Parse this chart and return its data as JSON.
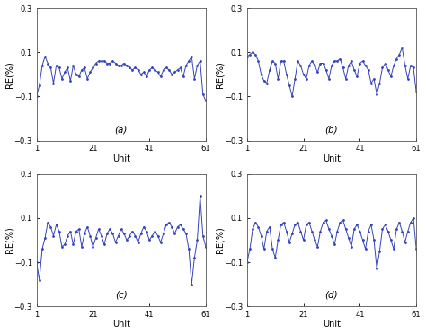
{
  "line_color": "#3344bb",
  "marker": ".",
  "marker_size": 2.0,
  "linewidth": 0.7,
  "ylim": [
    -0.3,
    0.3
  ],
  "yticks": [
    -0.3,
    -0.1,
    0.1,
    0.3
  ],
  "xticks": [
    1,
    21,
    41,
    61
  ],
  "xlabel": "Unit",
  "ylabel": "RE(%)",
  "bg_color": "#ffffff",
  "labels": [
    "(a)",
    "(b)",
    "(c)",
    "(d)"
  ],
  "figsize": [
    4.74,
    3.72
  ],
  "dpi": 100,
  "y_a": [
    -0.1,
    -0.05,
    0.04,
    0.08,
    0.05,
    0.03,
    -0.04,
    0.04,
    0.03,
    -0.02,
    0.01,
    0.03,
    -0.03,
    0.04,
    0.0,
    -0.01,
    0.02,
    0.03,
    -0.02,
    0.01,
    0.03,
    0.05,
    0.06,
    0.06,
    0.06,
    0.05,
    0.05,
    0.06,
    0.05,
    0.04,
    0.04,
    0.05,
    0.04,
    0.03,
    0.02,
    0.03,
    0.02,
    0.0,
    0.01,
    -0.01,
    0.02,
    0.03,
    0.02,
    0.01,
    -0.01,
    0.02,
    0.03,
    0.02,
    0.0,
    0.01,
    0.02,
    0.03,
    -0.01,
    0.04,
    0.06,
    0.08,
    -0.02,
    0.04,
    0.06,
    -0.09,
    -0.12
  ],
  "y_b": [
    0.08,
    0.09,
    0.1,
    0.09,
    0.06,
    0.0,
    -0.03,
    -0.04,
    0.02,
    0.06,
    0.05,
    -0.02,
    0.06,
    0.06,
    0.0,
    -0.05,
    -0.1,
    -0.02,
    0.06,
    0.04,
    0.0,
    -0.02,
    0.04,
    0.06,
    0.04,
    0.01,
    0.05,
    0.05,
    0.02,
    -0.02,
    0.04,
    0.06,
    0.06,
    0.07,
    0.03,
    -0.02,
    0.04,
    0.06,
    0.02,
    -0.01,
    0.05,
    0.06,
    0.04,
    0.02,
    -0.04,
    -0.02,
    -0.09,
    -0.04,
    0.03,
    0.05,
    0.02,
    -0.01,
    0.04,
    0.07,
    0.09,
    0.12,
    0.04,
    -0.02,
    0.04,
    0.03,
    -0.08
  ],
  "y_c": [
    -0.1,
    -0.18,
    -0.04,
    0.01,
    0.08,
    0.06,
    0.02,
    0.07,
    0.04,
    -0.03,
    -0.02,
    0.02,
    0.04,
    -0.02,
    0.04,
    0.05,
    -0.03,
    0.03,
    0.06,
    0.02,
    -0.03,
    0.01,
    0.05,
    0.02,
    -0.02,
    0.03,
    0.05,
    0.03,
    -0.01,
    0.02,
    0.05,
    0.03,
    0.0,
    0.02,
    0.04,
    0.02,
    -0.01,
    0.03,
    0.06,
    0.04,
    0.0,
    0.02,
    0.04,
    0.02,
    -0.01,
    0.03,
    0.07,
    0.08,
    0.06,
    0.03,
    0.06,
    0.07,
    0.05,
    0.03,
    -0.04,
    -0.2,
    -0.08,
    0.0,
    0.2,
    0.02,
    -0.03
  ],
  "y_d": [
    -0.1,
    -0.04,
    0.05,
    0.08,
    0.06,
    0.02,
    -0.04,
    0.04,
    0.06,
    -0.04,
    -0.08,
    0.0,
    0.07,
    0.08,
    0.04,
    -0.01,
    0.03,
    0.07,
    0.08,
    0.04,
    0.0,
    0.07,
    0.08,
    0.04,
    0.0,
    -0.03,
    0.04,
    0.08,
    0.09,
    0.05,
    0.02,
    -0.02,
    0.04,
    0.08,
    0.09,
    0.05,
    0.01,
    -0.03,
    0.05,
    0.07,
    0.04,
    0.0,
    -0.04,
    0.04,
    0.07,
    0.0,
    -0.13,
    -0.05,
    0.05,
    0.07,
    0.04,
    0.0,
    -0.04,
    0.05,
    0.08,
    0.04,
    -0.01,
    0.04,
    0.08,
    0.1,
    -0.04
  ]
}
